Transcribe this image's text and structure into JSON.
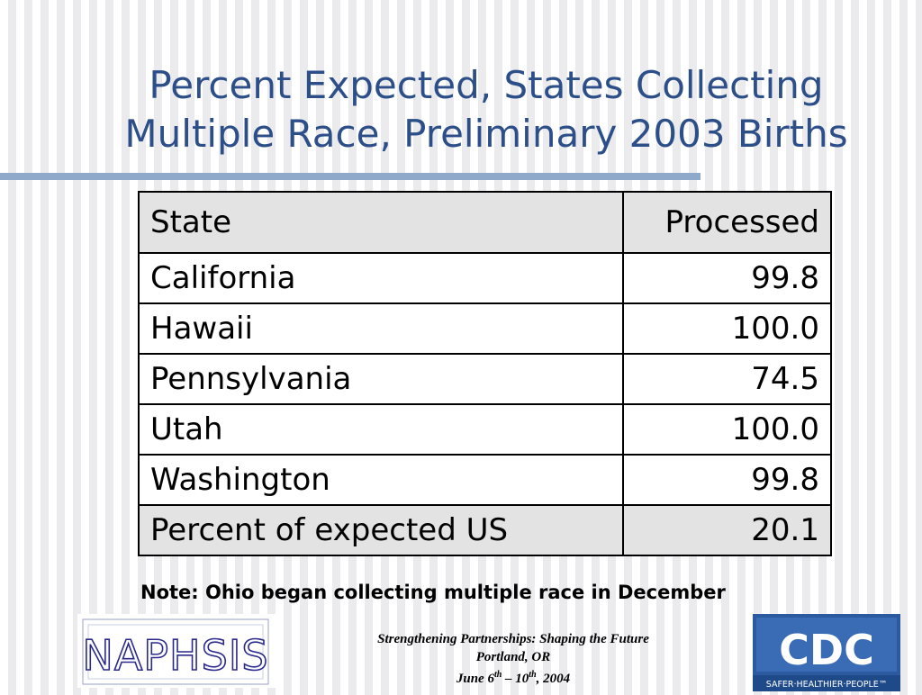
{
  "slide": {
    "title": "Percent Expected, States Collecting Multiple Race, Preliminary 2003 Births",
    "note": "Note: Ohio began collecting multiple race in December"
  },
  "table": {
    "headers": [
      "State",
      "Processed"
    ],
    "rows": [
      [
        "California",
        "99.8"
      ],
      [
        "Hawaii",
        "100.0"
      ],
      [
        "Pennsylvania",
        "74.5"
      ],
      [
        "Utah",
        "100.0"
      ],
      [
        "Washington",
        "99.8"
      ],
      [
        "Percent of expected US",
        "20.1"
      ]
    ]
  },
  "footer": {
    "line1": "Strengthening Partnerships: Shaping the Future",
    "line2": "Portland, OR",
    "line3_a": "June 6",
    "line3_sup_a": "th",
    "line3_b": " – 10",
    "line3_sup_b": "th",
    "line3_c": ", 2004"
  },
  "logos": {
    "left": "NAPHSIS",
    "right": "CDC",
    "right_tagline": "SAFER·HEALTHIER·PEOPLE™"
  },
  "colors": {
    "title": "#2d4f89",
    "rule": "#8ea9c9",
    "header_fill": "#e3e3e3",
    "cdc_blue": "#2c5aa0"
  }
}
